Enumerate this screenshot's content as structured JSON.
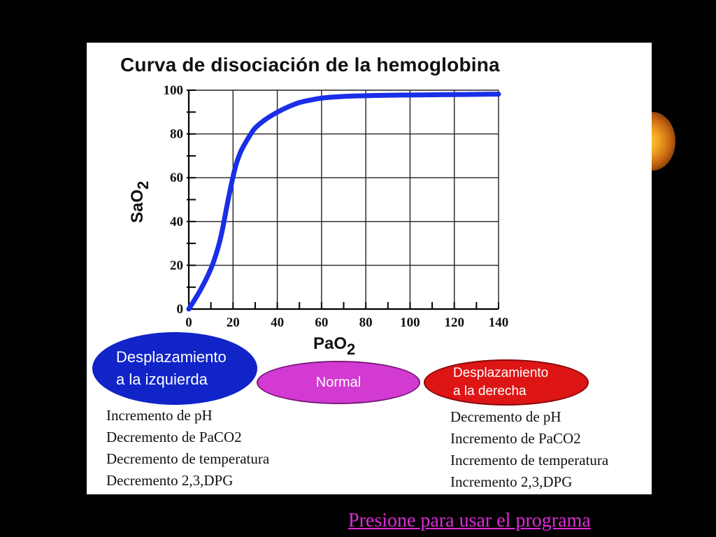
{
  "chart_data": {
    "type": "line",
    "title": "Curva de disociación de la hemoglobina",
    "xlabel": "PaO",
    "xlabel_sub": "2",
    "ylabel": "SaO",
    "ylabel_sub": "2",
    "xlim": [
      0,
      140
    ],
    "ylim": [
      0,
      100
    ],
    "x_ticks": [
      0,
      20,
      40,
      60,
      80,
      100,
      120,
      140
    ],
    "y_ticks": [
      0,
      20,
      40,
      60,
      80,
      100
    ],
    "grid": true,
    "series": [
      {
        "color": "#1a2ee8",
        "x": [
          0,
          5,
          10,
          13,
          15,
          17,
          19,
          21,
          23,
          25,
          28,
          30,
          35,
          40,
          45,
          50,
          55,
          60,
          70,
          80,
          90,
          100,
          110,
          120,
          130,
          140
        ],
        "y": [
          0,
          8,
          18,
          27,
          35,
          46,
          56,
          65,
          71,
          75,
          80,
          83,
          87,
          90,
          92.5,
          94.5,
          95.5,
          96.5,
          97.2,
          97.5,
          97.7,
          97.8,
          97.9,
          98,
          98.1,
          98.2
        ]
      }
    ]
  },
  "left_shift": {
    "label_line1": "Desplazamiento",
    "label_line2": "a la izquierda",
    "items": [
      "Incremento de pH",
      "Decremento de PaCO2",
      "Decremento de temperatura",
      "Decremento  2,3,DPG"
    ]
  },
  "normal": {
    "label": "Normal"
  },
  "right_shift": {
    "label_line1": "Desplazamiento",
    "label_line2": "a la derecha",
    "items": [
      "Decremento de pH",
      "Incremento de PaCO2",
      "Incremento de temperatura",
      "Incremento  2,3,DPG"
    ]
  },
  "footer": {
    "link": "Presione para usar el programa"
  }
}
